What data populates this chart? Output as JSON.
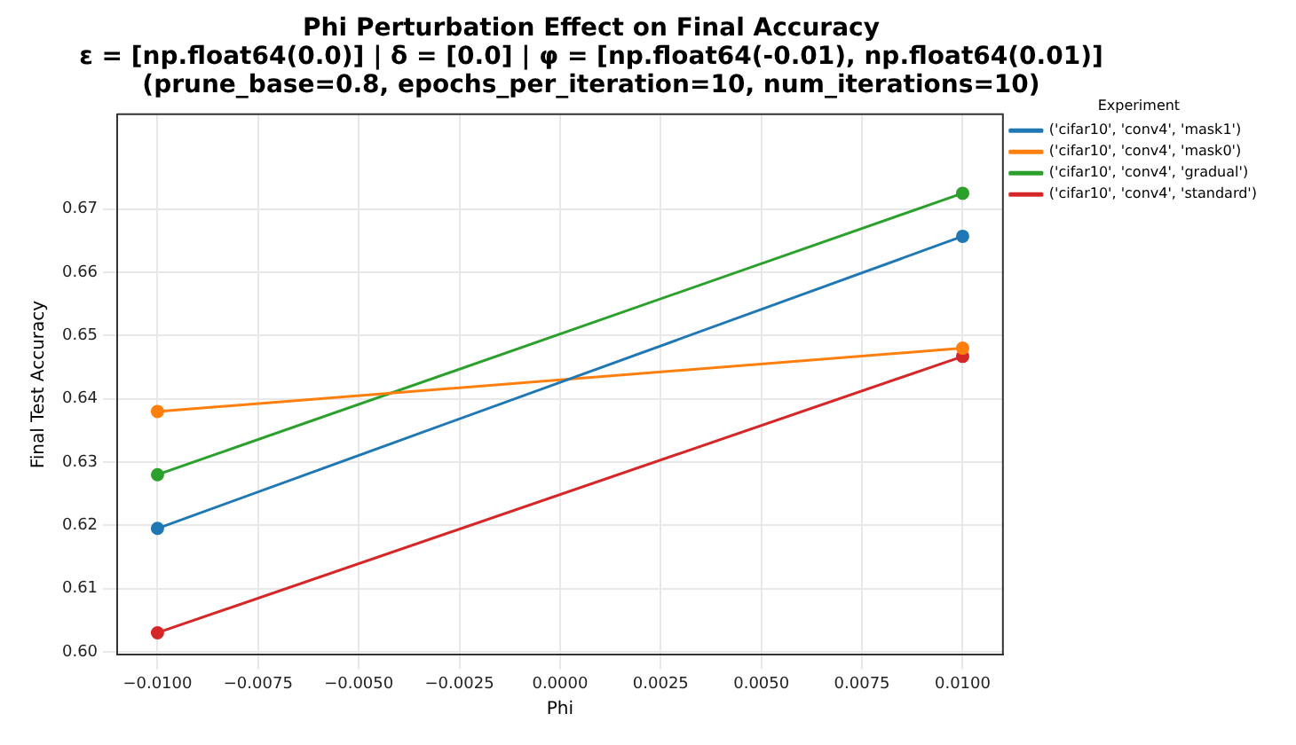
{
  "chart_data": {
    "type": "line",
    "title": "Phi Perturbation Effect on Final Accuracy\nε = [np.float64(0.0)] | δ = [0.0] | φ = [np.float64(-0.01), np.float64(0.01)]\n(prune_base=0.8, epochs_per_iteration=10, num_iterations=10)",
    "xlabel": "Phi",
    "ylabel": "Final Test Accuracy",
    "legend_title": "Experiment",
    "x": [
      -0.01,
      0.01
    ],
    "series": [
      {
        "name": "('cifar10', 'conv4', 'mask1')",
        "color": "#1f77b4",
        "values": [
          0.6195,
          0.6657
        ]
      },
      {
        "name": "('cifar10', 'conv4', 'mask0')",
        "color": "#ff7f0e",
        "values": [
          0.638,
          0.648
        ]
      },
      {
        "name": "('cifar10', 'conv4', 'gradual')",
        "color": "#2ca02c",
        "values": [
          0.628,
          0.6725
        ]
      },
      {
        "name": "('cifar10', 'conv4', 'standard')",
        "color": "#d62728",
        "values": [
          0.603,
          0.6467
        ]
      }
    ],
    "xlim": [
      -0.011,
      0.011
    ],
    "xticks": [
      {
        "value": -0.01,
        "label": "−0.0100"
      },
      {
        "value": -0.0075,
        "label": "−0.0075"
      },
      {
        "value": -0.005,
        "label": "−0.0050"
      },
      {
        "value": -0.0025,
        "label": "−0.0025"
      },
      {
        "value": 0,
        "label": "0.0000"
      },
      {
        "value": 0.0025,
        "label": "0.0025"
      },
      {
        "value": 0.005,
        "label": "0.0050"
      },
      {
        "value": 0.0075,
        "label": "0.0075"
      },
      {
        "value": 0.01,
        "label": "0.0100"
      }
    ],
    "ylim": [
      0.5995,
      0.685
    ],
    "yticks": [
      {
        "value": 0.6,
        "label": "0.60"
      },
      {
        "value": 0.61,
        "label": "0.61"
      },
      {
        "value": 0.62,
        "label": "0.62"
      },
      {
        "value": 0.63,
        "label": "0.63"
      },
      {
        "value": 0.64,
        "label": "0.64"
      },
      {
        "value": 0.65,
        "label": "0.65"
      },
      {
        "value": 0.66,
        "label": "0.66"
      },
      {
        "value": 0.67,
        "label": "0.67"
      }
    ],
    "grid": true,
    "legend": "right",
    "marker": "circle",
    "line_style": "solid"
  }
}
